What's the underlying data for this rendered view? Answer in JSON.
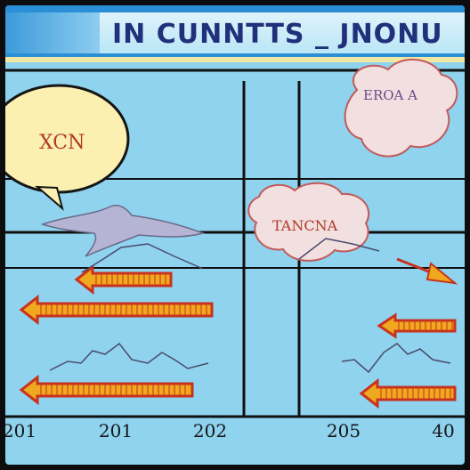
{
  "chart_data": {
    "type": "line",
    "title": "IN CUNNTTS _ JNONU",
    "x_tick_labels": [
      "201",
      "201",
      "202",
      "205",
      "40"
    ],
    "annotations": [
      "XCN",
      "EROA A",
      "TANCNA"
    ],
    "colors": {
      "background": "#8fd3ef",
      "banner": "#2a8fd6",
      "title": "#20307a",
      "grid": "#101010",
      "arrow_fill": "#f0a81e",
      "arrow_edge": "#c8321e",
      "line": "#4a4a6a"
    }
  }
}
